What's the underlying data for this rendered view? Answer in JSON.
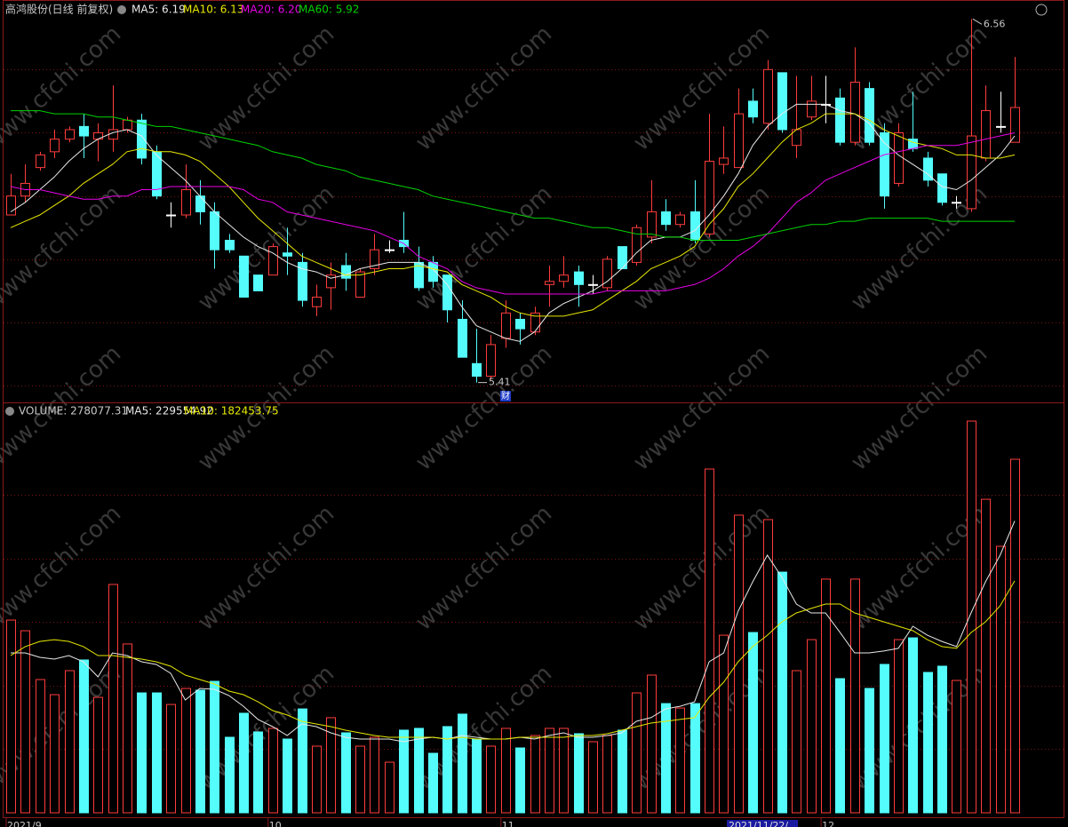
{
  "chart_data": [
    {
      "type": "candlestick",
      "title": "高鸿股份(日线 前复权)",
      "open": [
        5.94,
        6.0,
        6.09,
        6.14,
        6.18,
        6.22,
        6.18,
        6.18,
        6.21,
        6.24,
        6.14,
        5.94,
        5.94,
        6.0,
        5.95,
        5.86,
        5.81,
        5.75,
        5.75,
        5.82,
        5.79,
        5.65,
        5.71,
        5.78,
        5.68,
        5.77,
        5.83,
        5.86,
        5.79,
        5.79,
        5.75,
        5.61,
        5.47,
        5.43,
        5.55,
        5.61,
        5.57,
        5.72,
        5.73,
        5.76,
        5.72,
        5.71,
        5.84,
        5.79,
        5.87,
        5.95,
        5.91,
        5.95,
        5.88,
        6.1,
        6.09,
        6.3,
        6.23,
        6.39,
        6.16,
        6.25,
        6.29,
        6.31,
        6.17,
        6.34,
        6.2,
        6.04,
        6.18,
        6.12,
        6.07,
        5.98,
        5.96,
        6.12,
        6.22,
        6.17
      ],
      "high": [
        6.07,
        6.1,
        6.14,
        6.21,
        6.22,
        6.26,
        6.23,
        6.35,
        6.25,
        6.26,
        6.16,
        5.98,
        6.1,
        6.05,
        5.98,
        5.88,
        5.81,
        5.75,
        5.85,
        5.9,
        5.82,
        5.72,
        5.79,
        5.82,
        5.77,
        5.88,
        5.86,
        5.95,
        5.84,
        5.81,
        5.75,
        5.67,
        5.58,
        5.56,
        5.67,
        5.63,
        5.65,
        5.78,
        5.81,
        5.78,
        5.75,
        5.81,
        5.84,
        5.91,
        6.05,
        5.99,
        5.95,
        6.05,
        6.26,
        6.22,
        6.34,
        6.34,
        6.43,
        6.39,
        6.38,
        6.38,
        6.38,
        6.34,
        6.47,
        6.36,
        6.23,
        6.23,
        6.33,
        6.14,
        6.07,
        6.0,
        6.56,
        6.35,
        6.33,
        6.44
      ],
      "low": [
        5.94,
        5.98,
        6.08,
        6.12,
        6.17,
        6.12,
        6.11,
        6.14,
        6.2,
        6.1,
        5.99,
        5.9,
        5.93,
        5.91,
        5.77,
        5.82,
        5.68,
        5.7,
        5.75,
        5.75,
        5.65,
        5.62,
        5.64,
        5.7,
        5.68,
        5.75,
        5.82,
        5.82,
        5.7,
        5.71,
        5.6,
        5.49,
        5.41,
        5.42,
        5.52,
        5.53,
        5.56,
        5.65,
        5.71,
        5.65,
        5.69,
        5.7,
        5.77,
        5.78,
        5.85,
        5.89,
        5.9,
        5.85,
        5.87,
        6.07,
        6.09,
        6.23,
        6.21,
        6.2,
        6.12,
        6.24,
        6.23,
        6.16,
        6.16,
        6.16,
        5.96,
        6.03,
        6.14,
        6.03,
        5.97,
        5.96,
        5.95,
        6.11,
        6.2,
        6.17
      ],
      "close": [
        6.0,
        6.04,
        6.13,
        6.18,
        6.21,
        6.19,
        6.2,
        6.21,
        6.24,
        6.12,
        6.0,
        5.94,
        6.02,
        5.95,
        5.83,
        5.83,
        5.68,
        5.7,
        5.84,
        5.81,
        5.67,
        5.68,
        5.75,
        5.74,
        5.76,
        5.83,
        5.83,
        5.84,
        5.71,
        5.73,
        5.64,
        5.49,
        5.43,
        5.53,
        5.63,
        5.58,
        5.63,
        5.73,
        5.75,
        5.72,
        5.72,
        5.8,
        5.77,
        5.9,
        5.95,
        5.91,
        5.94,
        5.86,
        6.11,
        6.12,
        6.26,
        6.25,
        6.4,
        6.21,
        6.21,
        6.3,
        6.29,
        6.17,
        6.36,
        6.17,
        6.0,
        6.2,
        6.15,
        6.05,
        5.98,
        5.98,
        6.19,
        6.27,
        6.22,
        6.28
      ],
      "up_color": "#ff3c3c",
      "down_color": "#54fcfc",
      "flat_color": "#ffffff",
      "series": [
        {
          "name": "MA5: 6.19",
          "color": "#e8e8e8",
          "values": [
            5.95,
            5.98,
            6.02,
            6.06,
            6.11,
            6.15,
            6.18,
            6.2,
            6.21,
            6.19,
            6.13,
            6.09,
            6.05,
            6.0,
            5.95,
            5.91,
            5.87,
            5.84,
            5.82,
            5.79,
            5.77,
            5.76,
            5.74,
            5.75,
            5.77,
            5.78,
            5.79,
            5.79,
            5.79,
            5.77,
            5.72,
            5.65,
            5.59,
            5.57,
            5.55,
            5.54,
            5.57,
            5.63,
            5.66,
            5.68,
            5.7,
            5.73,
            5.77,
            5.82,
            5.86,
            5.87,
            5.87,
            5.89,
            5.94,
            6.0,
            6.07,
            6.16,
            6.22,
            6.26,
            6.29,
            6.29,
            6.29,
            6.27,
            6.26,
            6.23,
            6.17,
            6.13,
            6.1,
            6.07,
            6.03,
            6.02,
            6.05,
            6.09,
            6.13,
            6.19
          ]
        },
        {
          "name": "MA10: 6.13",
          "color": "#e8e800",
          "values": [
            5.9,
            5.92,
            5.94,
            5.97,
            6.0,
            6.04,
            6.07,
            6.1,
            6.14,
            6.15,
            6.14,
            6.14,
            6.13,
            6.11,
            6.07,
            6.03,
            5.98,
            5.93,
            5.89,
            5.85,
            5.81,
            5.79,
            5.77,
            5.75,
            5.75,
            5.76,
            5.77,
            5.77,
            5.78,
            5.77,
            5.76,
            5.72,
            5.7,
            5.68,
            5.65,
            5.63,
            5.62,
            5.62,
            5.62,
            5.63,
            5.64,
            5.67,
            5.7,
            5.73,
            5.77,
            5.79,
            5.81,
            5.84,
            5.91,
            5.96,
            6.03,
            6.07,
            6.12,
            6.17,
            6.21,
            6.23,
            6.26,
            6.26,
            6.26,
            6.24,
            6.21,
            6.19,
            6.17,
            6.16,
            6.15,
            6.13,
            6.13,
            6.12,
            6.12,
            6.13
          ]
        },
        {
          "name": "MA20: 6.20",
          "color": "#e800e8",
          "values": [
            6.03,
            6.02,
            6.02,
            6.01,
            6.0,
            5.99,
            5.99,
            6.0,
            6.0,
            6.02,
            6.02,
            6.03,
            6.03,
            6.03,
            6.03,
            6.03,
            6.02,
            5.99,
            5.98,
            5.95,
            5.94,
            5.93,
            5.92,
            5.91,
            5.9,
            5.89,
            5.87,
            5.85,
            5.81,
            5.79,
            5.77,
            5.73,
            5.71,
            5.7,
            5.69,
            5.69,
            5.69,
            5.69,
            5.69,
            5.69,
            5.69,
            5.7,
            5.7,
            5.7,
            5.7,
            5.7,
            5.71,
            5.72,
            5.74,
            5.77,
            5.81,
            5.84,
            5.88,
            5.93,
            5.98,
            6.01,
            6.05,
            6.07,
            6.09,
            6.11,
            6.13,
            6.14,
            6.15,
            6.16,
            6.16,
            6.16,
            6.17,
            6.18,
            6.19,
            6.2
          ]
        },
        {
          "name": "MA60: 5.92",
          "color": "#00d200",
          "values": [
            6.27,
            6.27,
            6.27,
            6.26,
            6.26,
            6.26,
            6.25,
            6.25,
            6.24,
            6.23,
            6.22,
            6.22,
            6.21,
            6.2,
            6.19,
            6.18,
            6.17,
            6.16,
            6.14,
            6.13,
            6.12,
            6.1,
            6.09,
            6.08,
            6.06,
            6.05,
            6.04,
            6.03,
            6.02,
            6.0,
            5.99,
            5.98,
            5.97,
            5.96,
            5.95,
            5.94,
            5.93,
            5.93,
            5.92,
            5.91,
            5.9,
            5.9,
            5.89,
            5.88,
            5.88,
            5.87,
            5.87,
            5.86,
            5.86,
            5.86,
            5.86,
            5.87,
            5.88,
            5.89,
            5.9,
            5.91,
            5.91,
            5.92,
            5.92,
            5.93,
            5.93,
            5.93,
            5.93,
            5.93,
            5.92,
            5.92,
            5.92,
            5.92,
            5.92,
            5.92
          ]
        }
      ],
      "ylim": [
        5.35,
        6.62
      ],
      "y_gridlines": [
        5.4,
        5.6,
        5.8,
        6.0,
        6.2,
        6.4
      ],
      "annotations": [
        {
          "label": "6.56",
          "value": 6.56
        },
        {
          "label": "5.41",
          "value": 5.41
        }
      ],
      "event_label": "财"
    },
    {
      "type": "bar",
      "categories": [
        "2021/9",
        null,
        null,
        null,
        null,
        null,
        null,
        null,
        null,
        null,
        null,
        null,
        null,
        null,
        null,
        null,
        null,
        null,
        "10",
        null,
        null,
        null,
        null,
        null,
        null,
        null,
        null,
        null,
        null,
        null,
        null,
        null,
        null,
        null,
        "11",
        null,
        null,
        null,
        null,
        null,
        null,
        null,
        null,
        null,
        null,
        null,
        null,
        null,
        null,
        null,
        null,
        null,
        null,
        null,
        null,
        null,
        "12",
        null,
        null,
        null,
        null,
        null,
        null,
        null,
        null,
        null,
        null,
        null,
        null,
        null
      ],
      "series": [
        {
          "name": "VOLUME: 278077.31",
          "color": "#c8c8c8",
          "type": "bar",
          "values": [
            151600,
            143200,
            104800,
            92900,
            111800,
            120200,
            90800,
            179600,
            132800,
            94300,
            94300,
            85200,
            97800,
            96400,
            103400,
            59400,
            78300,
            63600,
            66400,
            58000,
            81700,
            52400,
            74800,
            62900,
            52400,
            59400,
            39800,
            65000,
            66400,
            46800,
            67800,
            77600,
            58000,
            52400,
            66400,
            51000,
            60800,
            66400,
            66400,
            62200,
            55900,
            60800,
            65000,
            94300,
            108300,
            85900,
            82400,
            85900,
            270400,
            139700,
            234100,
            141800,
            230600,
            189300,
            111800,
            136200,
            183800,
            105500,
            183800,
            97800,
            116700,
            136200,
            137600,
            110400,
            115300,
            104100,
            308100,
            246600,
            209600,
            278077.31
          ]
        },
        {
          "name": "MA5: 229554.92",
          "color": "#e8e8e8",
          "type": "line",
          "values": [
            125800,
            125800,
            122300,
            120900,
            123700,
            118800,
            106900,
            125800,
            123700,
            118800,
            116700,
            109700,
            88700,
            97800,
            97100,
            92200,
            83800,
            73400,
            67800,
            60800,
            69900,
            67800,
            62900,
            59400,
            58000,
            58000,
            58000,
            55900,
            58000,
            59400,
            58000,
            60800,
            59400,
            58000,
            58000,
            59400,
            58000,
            60800,
            62900,
            59400,
            59400,
            60800,
            62900,
            72000,
            74800,
            81700,
            83800,
            87300,
            118800,
            125800,
            158600,
            181700,
            202600,
            185200,
            164200,
            157200,
            157200,
            141800,
            125800,
            125800,
            127200,
            129300,
            146700,
            139700,
            134800,
            130700,
            157200,
            181700,
            202600,
            229554.92
          ]
        },
        {
          "name": "MA10: 182453.75",
          "color": "#e8e800",
          "type": "line",
          "values": [
            123700,
            130700,
            134800,
            136200,
            134800,
            130700,
            123700,
            123700,
            122300,
            120900,
            118800,
            115300,
            108300,
            104800,
            101300,
            95700,
            92900,
            87300,
            80400,
            76900,
            72000,
            69900,
            67800,
            65000,
            62900,
            60800,
            59400,
            59400,
            59400,
            59400,
            58000,
            59400,
            58000,
            58000,
            58000,
            59400,
            59400,
            59400,
            59400,
            60800,
            60800,
            62200,
            65000,
            67800,
            70600,
            72000,
            73400,
            74800,
            90800,
            102700,
            118800,
            130700,
            139700,
            150200,
            157200,
            160700,
            164200,
            164200,
            157200,
            153700,
            150200,
            146700,
            143200,
            136200,
            130700,
            129300,
            141800,
            150200,
            162800,
            182453.75
          ]
        }
      ],
      "ylim": [
        0,
        321400
      ],
      "y_gridlines": [
        50000,
        100000,
        150000,
        200000,
        250000
      ],
      "cursor_label": "2021/11/22/"
    }
  ],
  "watermark": "www.cfchi.com"
}
